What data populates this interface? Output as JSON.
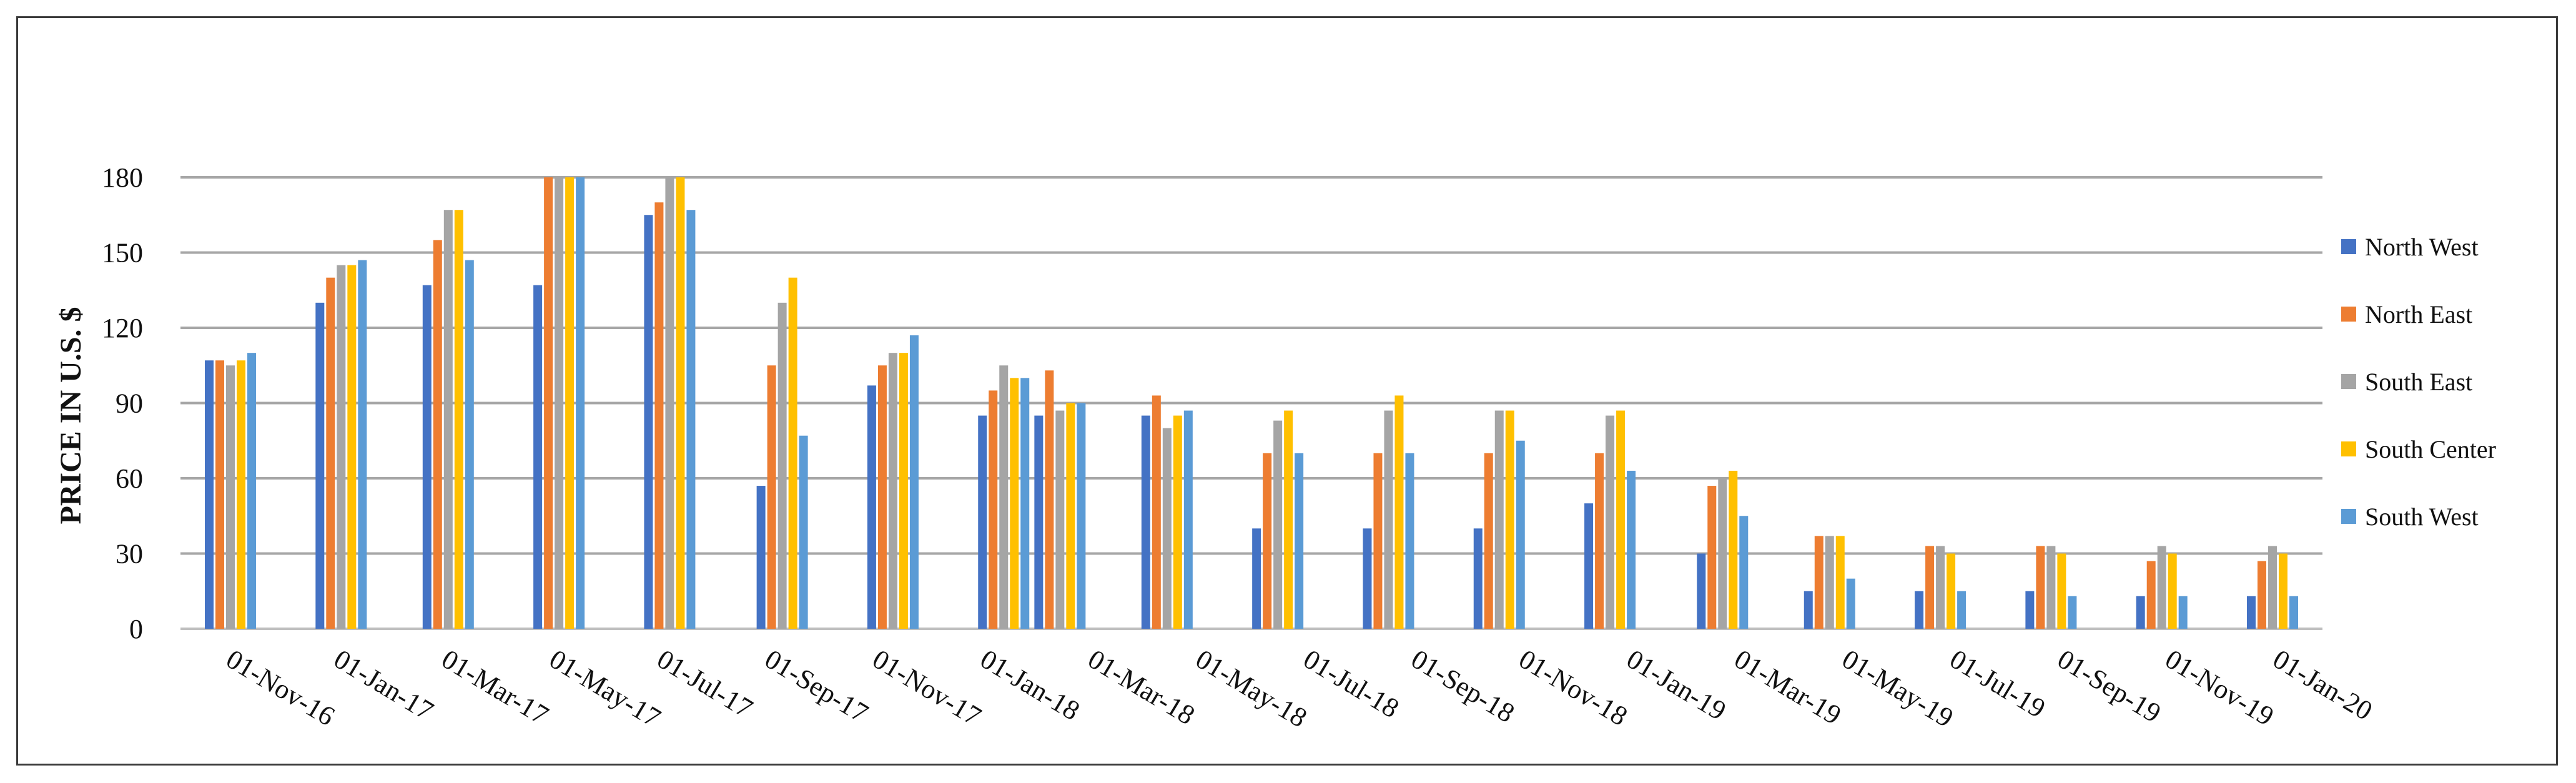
{
  "chart_data": {
    "type": "bar",
    "title": "",
    "xlabel": "",
    "ylabel": "PRICE IN U.S. $",
    "ylim": [
      0,
      180
    ],
    "yticks": [
      0,
      30,
      60,
      90,
      120,
      150,
      180
    ],
    "grid": true,
    "legend_position": "right",
    "x_tick_labels": [
      "01-Nov-16",
      "01-Jan-17",
      "01-Mar-17",
      "01-May-17",
      "01-Jul-17",
      "01-Sep-17",
      "01-Nov-17",
      "01-Jan-18",
      "01-Mar-18",
      "01-May-18",
      "01-Jul-18",
      "01-Sep-18",
      "01-Nov-18",
      "01-Jan-19",
      "01-Mar-19",
      "01-May-19",
      "01-Jul-19",
      "01-Sep-19",
      "01-Nov-19",
      "01-Jan-20"
    ],
    "categories": [
      "2016-11-01",
      "2017-01-01",
      "2017-03-01",
      "2017-05-01",
      "2017-07-01",
      "2017-09-01",
      "2017-11-01",
      "2018-01-01",
      "2018-02-01",
      "2018-04-01",
      "2018-06-01",
      "2018-08-01",
      "2018-10-01",
      "2018-12-01",
      "2019-02-01",
      "2019-04-01",
      "2019-06-01",
      "2019-08-01",
      "2019-10-01",
      "2019-12-01"
    ],
    "series": [
      {
        "name": "North West",
        "color": "#4472C4",
        "values": [
          107,
          130,
          137,
          137,
          165,
          57,
          97,
          85,
          85,
          85,
          40,
          40,
          40,
          50,
          30,
          15,
          15,
          15,
          13,
          13
        ]
      },
      {
        "name": "North East",
        "color": "#ED7D31",
        "values": [
          107,
          140,
          155,
          180,
          170,
          105,
          105,
          95,
          103,
          93,
          70,
          70,
          70,
          70,
          57,
          37,
          33,
          33,
          27,
          27
        ]
      },
      {
        "name": "South East",
        "color": "#A5A5A5",
        "values": [
          105,
          145,
          167,
          180,
          180,
          130,
          110,
          105,
          87,
          80,
          83,
          87,
          87,
          85,
          60,
          37,
          33,
          33,
          33,
          33
        ]
      },
      {
        "name": "South Center",
        "color": "#FFC000",
        "values": [
          107,
          145,
          167,
          180,
          180,
          140,
          110,
          100,
          90,
          85,
          87,
          93,
          87,
          87,
          63,
          37,
          30,
          30,
          30,
          30
        ]
      },
      {
        "name": "South West",
        "color": "#5B9BD5",
        "values": [
          110,
          147,
          147,
          180,
          167,
          77,
          117,
          100,
          90,
          87,
          70,
          70,
          75,
          63,
          45,
          20,
          15,
          13,
          13,
          13
        ]
      }
    ]
  }
}
